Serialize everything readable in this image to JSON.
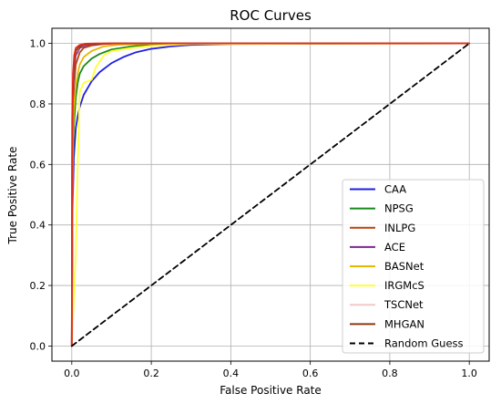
{
  "chart_data": {
    "type": "line",
    "title": "ROC Curves",
    "xlabel": "False Positive Rate",
    "ylabel": "True Positive Rate",
    "xlim": [
      -0.05,
      1.05
    ],
    "ylim": [
      -0.05,
      1.05
    ],
    "xticks": [
      0.0,
      0.2,
      0.4,
      0.6,
      0.8,
      1.0
    ],
    "xtick_labels": [
      "0.0",
      "0.2",
      "0.4",
      "0.6",
      "0.8",
      "1.0"
    ],
    "yticks": [
      0.0,
      0.2,
      0.4,
      0.6,
      0.8,
      1.0
    ],
    "ytick_labels": [
      "0.0",
      "0.2",
      "0.4",
      "0.6",
      "0.8",
      "1.0"
    ],
    "grid": true,
    "legend_position": "lower-right",
    "series": [
      {
        "name": "CAA",
        "color": "#1f1fe6",
        "style": "solid",
        "x": [
          0,
          0.002,
          0.005,
          0.01,
          0.015,
          0.02,
          0.03,
          0.05,
          0.07,
          0.1,
          0.13,
          0.16,
          0.2,
          0.25,
          0.3,
          0.4,
          0.6,
          0.8,
          1.0
        ],
        "y": [
          0,
          0.45,
          0.62,
          0.72,
          0.76,
          0.79,
          0.83,
          0.875,
          0.905,
          0.935,
          0.955,
          0.97,
          0.982,
          0.99,
          0.995,
          0.998,
          0.999,
          1.0,
          1.0
        ]
      },
      {
        "name": "NPSG",
        "color": "#1a8a1a",
        "style": "solid",
        "x": [
          0,
          0.002,
          0.005,
          0.01,
          0.015,
          0.02,
          0.03,
          0.05,
          0.07,
          0.1,
          0.15,
          0.2,
          0.3,
          1.0
        ],
        "y": [
          0,
          0.55,
          0.72,
          0.82,
          0.87,
          0.9,
          0.925,
          0.95,
          0.965,
          0.98,
          0.99,
          0.996,
          0.999,
          1.0
        ]
      },
      {
        "name": "INLPG",
        "color": "#b8430f",
        "style": "solid",
        "x": [
          0,
          0.002,
          0.005,
          0.01,
          0.02,
          0.03,
          0.05,
          0.08,
          0.12,
          1.0
        ],
        "y": [
          0,
          0.7,
          0.85,
          0.93,
          0.97,
          0.985,
          0.993,
          0.998,
          1.0,
          1.0
        ]
      },
      {
        "name": "ACE",
        "color": "#7b2a8e",
        "style": "solid",
        "x": [
          0,
          0.001,
          0.003,
          0.006,
          0.01,
          0.02,
          0.04,
          0.08,
          1.0
        ],
        "y": [
          0,
          0.55,
          0.82,
          0.92,
          0.96,
          0.985,
          0.995,
          1.0,
          1.0
        ]
      },
      {
        "name": "BASNet",
        "color": "#e6b800",
        "style": "solid",
        "x": [
          0,
          0.002,
          0.005,
          0.01,
          0.015,
          0.02,
          0.03,
          0.05,
          0.08,
          0.12,
          0.2,
          1.0
        ],
        "y": [
          0,
          0.6,
          0.78,
          0.86,
          0.9,
          0.93,
          0.955,
          0.975,
          0.99,
          0.996,
          0.999,
          1.0
        ]
      },
      {
        "name": "IRGMcS",
        "color": "#ffff33",
        "style": "solid",
        "x": [
          0,
          0.005,
          0.01,
          0.015,
          0.02,
          0.03,
          0.04,
          0.05,
          0.06,
          0.08,
          0.1,
          0.15,
          0.2,
          0.3,
          1.0
        ],
        "y": [
          0,
          0.15,
          0.3,
          0.6,
          0.84,
          0.87,
          0.875,
          0.88,
          0.92,
          0.96,
          0.975,
          0.985,
          0.992,
          0.998,
          1.0
        ]
      },
      {
        "name": "TSCNet",
        "color": "#f2c9c9",
        "style": "solid",
        "x": [
          0,
          0.001,
          0.003,
          0.006,
          0.01,
          0.02,
          0.04,
          0.07,
          1.0
        ],
        "y": [
          0,
          0.6,
          0.85,
          0.94,
          0.97,
          0.99,
          0.997,
          1.0,
          1.0
        ]
      },
      {
        "name": "MHGAN",
        "color": "#8b3a10",
        "style": "solid",
        "x": [
          0,
          0.001,
          0.003,
          0.006,
          0.01,
          0.02,
          0.03,
          0.05,
          0.1,
          1.0
        ],
        "y": [
          0,
          0.62,
          0.86,
          0.94,
          0.975,
          0.99,
          0.995,
          0.998,
          1.0,
          1.0
        ]
      },
      {
        "name": "MHGAN_top",
        "legend": false,
        "color": "#e8281e",
        "style": "solid",
        "x": [
          0,
          0.001,
          0.003,
          0.006,
          0.01,
          0.02,
          0.035,
          0.06,
          1.0
        ],
        "y": [
          0,
          0.75,
          0.9,
          0.96,
          0.985,
          0.995,
          0.999,
          1.0,
          1.0
        ]
      },
      {
        "name": "Random Guess",
        "color": "#000000",
        "style": "dashed",
        "x": [
          0,
          1.0
        ],
        "y": [
          0,
          1.0
        ]
      }
    ]
  }
}
